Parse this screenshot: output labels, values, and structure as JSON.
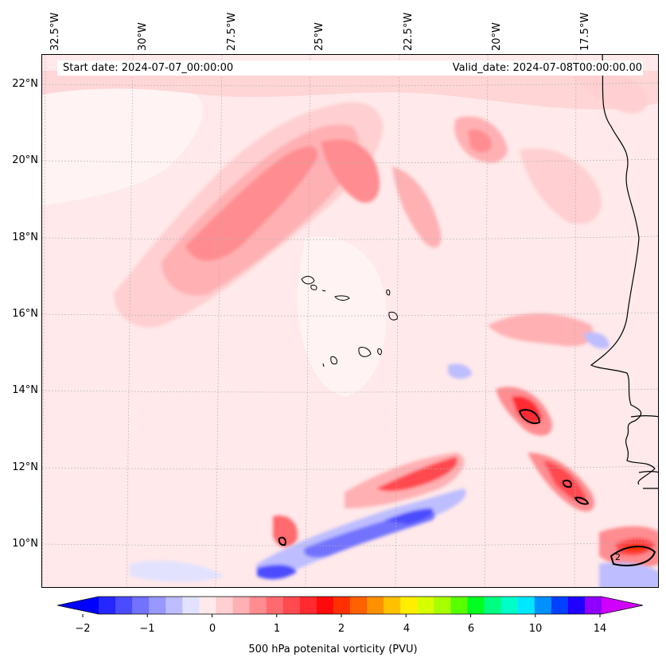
{
  "header": {
    "start_date": "Start date: 2024-07-07_00:00:00",
    "valid_date": "Valid_date: 2024-07-08T00:00:00.00"
  },
  "longitude_labels": [
    "32.5°W",
    "30°W",
    "27.5°W",
    "25°W",
    "22.5°W",
    "20°W",
    "17.5°W"
  ],
  "latitude_labels": [
    "22°N",
    "20°N",
    "18°N",
    "16°N",
    "14°N",
    "12°N",
    "10°N"
  ],
  "colorbar": {
    "label": "500 hPa potenital vorticity (PVU)",
    "tick_labels": [
      "−2",
      "−1",
      "0",
      "1",
      "2",
      "4",
      "6",
      "10",
      "14"
    ],
    "colors": [
      "#0000ff",
      "#2626ff",
      "#4c4cff",
      "#7272ff",
      "#9898ff",
      "#bdbdff",
      "#e2e2ff",
      "#ffe9ea",
      "#ffcfd1",
      "#ffb0b3",
      "#ff8c90",
      "#ff6a6e",
      "#ff4a4f",
      "#ff2a30",
      "#ff0a0a",
      "#ff3000",
      "#ff6000",
      "#ff9000",
      "#ffc000",
      "#ffee00",
      "#d8ff00",
      "#a8ff00",
      "#58ff00",
      "#00ff20",
      "#00ff80",
      "#00ffc8",
      "#00e8ff",
      "#0090ff",
      "#0040ff",
      "#2000ff",
      "#9000ff",
      "#d000ff"
    ]
  },
  "map": {
    "background_color": "#ffe9ea",
    "contour_label": "2"
  }
}
